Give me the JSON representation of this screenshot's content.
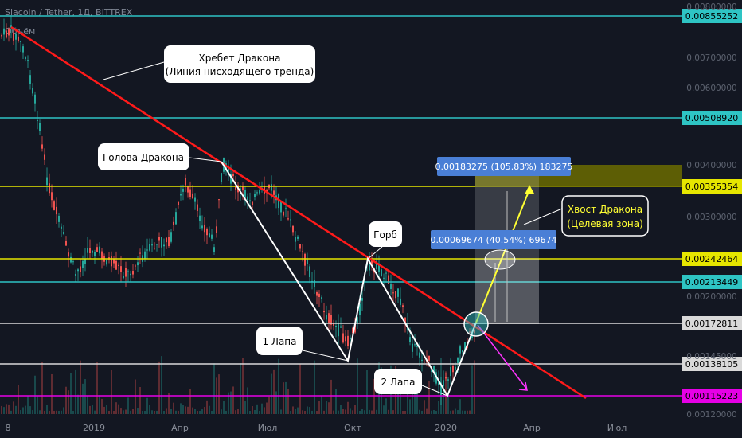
{
  "header": {
    "title": "Siacoin / Tether, 1Д, BITTREX",
    "volume_label": "Объём"
  },
  "colors": {
    "background": "#131722",
    "trendline": "#ff1a1a",
    "cyan_level": "#2ec4c4",
    "yellow_level": "#e6e600",
    "white_level": "#d9d9d9",
    "magenta_level": "#e600e6",
    "candle_up": "#26a69a",
    "candle_down": "#ef5350",
    "pattern": "#ffffff",
    "arrow_target": "#ffff33",
    "arrow_projection": "#ff33ff",
    "measure_box": "#4a7fd6",
    "target_zone": "#6b6b00"
  },
  "chart_data": {
    "type": "candlestick",
    "x_axis_labels": [
      "8",
      "2019",
      "Апр",
      "Июл",
      "Окт",
      "2020",
      "Апр",
      "Июл"
    ],
    "y_axis_ticks": [
      "0.00800000",
      "0.00700000",
      "0.00600000",
      "0.00400000",
      "0.00300000",
      "0.00200000",
      "0.00145000",
      "0.00120000"
    ],
    "horizontal_levels": [
      {
        "value": "0.00855252",
        "color": "cyan"
      },
      {
        "value": "0.00508920",
        "color": "cyan"
      },
      {
        "value": "0.00355354",
        "color": "yellow"
      },
      {
        "value": "0.00242464",
        "color": "yellow"
      },
      {
        "value": "0.00213449",
        "color": "cyan"
      },
      {
        "value": "0.00172811",
        "color": "white"
      },
      {
        "value": "0.00138105",
        "color": "white"
      },
      {
        "value": "0.00115223",
        "color": "magenta"
      }
    ],
    "annotations": [
      {
        "id": "dragon-ridge",
        "lines": [
          "Хребет Дракона",
          "(Линия нисходящего тренда)"
        ]
      },
      {
        "id": "dragon-head",
        "lines": [
          "Голова Дракона"
        ]
      },
      {
        "id": "hump",
        "lines": [
          "Горб"
        ]
      },
      {
        "id": "paw1",
        "lines": [
          "1 Лапа"
        ]
      },
      {
        "id": "paw2",
        "lines": [
          "2 Лапа"
        ]
      },
      {
        "id": "dragon-tail",
        "lines": [
          "Хвост Дракона",
          "(Целевая зона)"
        ]
      }
    ],
    "measurements": [
      {
        "id": "upper",
        "text": "0.00183275 (105.83%) 183275"
      },
      {
        "id": "lower",
        "text": "0.00069674 (40.54%) 69674"
      }
    ]
  }
}
